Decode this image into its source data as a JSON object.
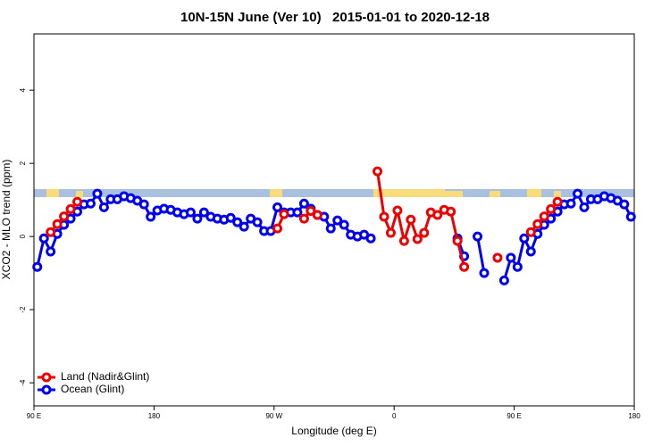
{
  "chart_data": {
    "type": "line",
    "title": "10N-15N June (Ver 10)   2015-01-01 to 2020-12-18",
    "x_label": "Longitude (deg E)",
    "y_label": "XCO2 - MLO trend (ppm)",
    "xlim": [
      90,
      540
    ],
    "xticks": [
      {
        "value": 90,
        "label": "90 E"
      },
      {
        "value": 180,
        "label": "180"
      },
      {
        "value": 270,
        "label": "90 W"
      },
      {
        "value": 360,
        "label": "0"
      },
      {
        "value": 450,
        "label": "90 E"
      },
      {
        "value": 540,
        "label": "180"
      }
    ],
    "ylim": [
      -4.63,
      5.54
    ],
    "yticks": [
      -4,
      -2,
      0,
      2,
      4
    ],
    "legend": "bottom-left",
    "x": [
      92.5,
      97.5,
      102.5,
      107.5,
      112.5,
      117.5,
      122.5,
      127.5,
      132.5,
      137.5,
      142.5,
      147.5,
      152.5,
      157.5,
      162.5,
      167.5,
      172.5,
      177.5,
      182.5,
      187.5,
      192.5,
      197.5,
      202.5,
      207.5,
      212.5,
      217.5,
      222.5,
      227.5,
      232.5,
      237.5,
      242.5,
      247.5,
      252.5,
      257.5,
      262.5,
      267.5,
      272.5,
      277.5,
      282.5,
      287.5,
      292.5,
      297.5,
      302.5,
      307.5,
      312.5,
      317.5,
      322.5,
      327.5,
      332.5,
      337.5,
      342.5,
      347.5,
      352.5,
      357.5,
      362.5,
      367.5,
      372.5,
      377.5,
      382.5,
      387.5,
      392.5,
      397.5,
      402.5,
      407.5,
      412.5,
      417.5,
      422.5,
      427.5,
      432.5,
      437.5,
      442.5,
      447.5,
      452.5,
      457.5,
      462.5,
      467.5,
      472.5,
      477.5,
      482.5,
      487.5,
      492.5,
      497.5,
      502.5,
      507.5,
      512.5,
      517.5,
      522.5,
      527.5,
      532.5,
      537.5
    ],
    "series": [
      {
        "name": "Ocean (Glint)",
        "color": "#0000ee",
        "values": [
          -0.83,
          -0.05,
          -0.41,
          0.07,
          0.32,
          0.49,
          0.68,
          0.88,
          0.9,
          1.17,
          0.8,
          1.02,
          1.02,
          1.1,
          1.05,
          0.98,
          0.88,
          0.54,
          0.71,
          0.76,
          0.73,
          0.66,
          0.61,
          0.66,
          0.49,
          0.66,
          0.54,
          0.49,
          0.46,
          0.51,
          0.39,
          0.27,
          0.49,
          0.39,
          0.15,
          0.15,
          0.8,
          0.66,
          0.66,
          0.66,
          0.9,
          0.76,
          0.59,
          0.54,
          0.22,
          0.44,
          0.32,
          0.05,
          0,
          0.05,
          -0.05,
          null,
          null,
          null,
          null,
          null,
          null,
          null,
          null,
          null,
          null,
          null,
          null,
          -0.05,
          -0.54,
          null,
          0,
          -1.0,
          null,
          null,
          -1.2,
          -0.58,
          -0.83,
          -0.05,
          -0.41,
          0.07,
          0.32,
          0.49,
          0.68,
          0.88,
          0.9,
          1.17,
          0.8,
          1.02,
          1.02,
          1.1,
          1.05,
          0.98,
          0.88,
          0.54
        ]
      },
      {
        "name": "Land (Nadir&Glint)",
        "color": "#ee0000",
        "values": [
          null,
          null,
          0.12,
          0.34,
          0.55,
          0.75,
          0.95,
          null,
          null,
          null,
          null,
          null,
          null,
          null,
          null,
          null,
          null,
          null,
          null,
          null,
          null,
          null,
          null,
          null,
          null,
          null,
          null,
          null,
          null,
          null,
          null,
          null,
          null,
          null,
          null,
          null,
          0.22,
          0.61,
          null,
          null,
          0.49,
          0.7,
          0.59,
          null,
          null,
          null,
          null,
          null,
          null,
          null,
          null,
          1.78,
          0.54,
          0.1,
          0.71,
          -0.12,
          0.46,
          -0.07,
          0.1,
          0.66,
          0.59,
          0.73,
          0.68,
          -0.12,
          -0.83,
          null,
          null,
          null,
          null,
          -0.58,
          null,
          null,
          null,
          null,
          0.12,
          0.34,
          0.55,
          0.75,
          0.95,
          null,
          null,
          null,
          null,
          null,
          null,
          null,
          null,
          null,
          null,
          null
        ]
      }
    ]
  }
}
